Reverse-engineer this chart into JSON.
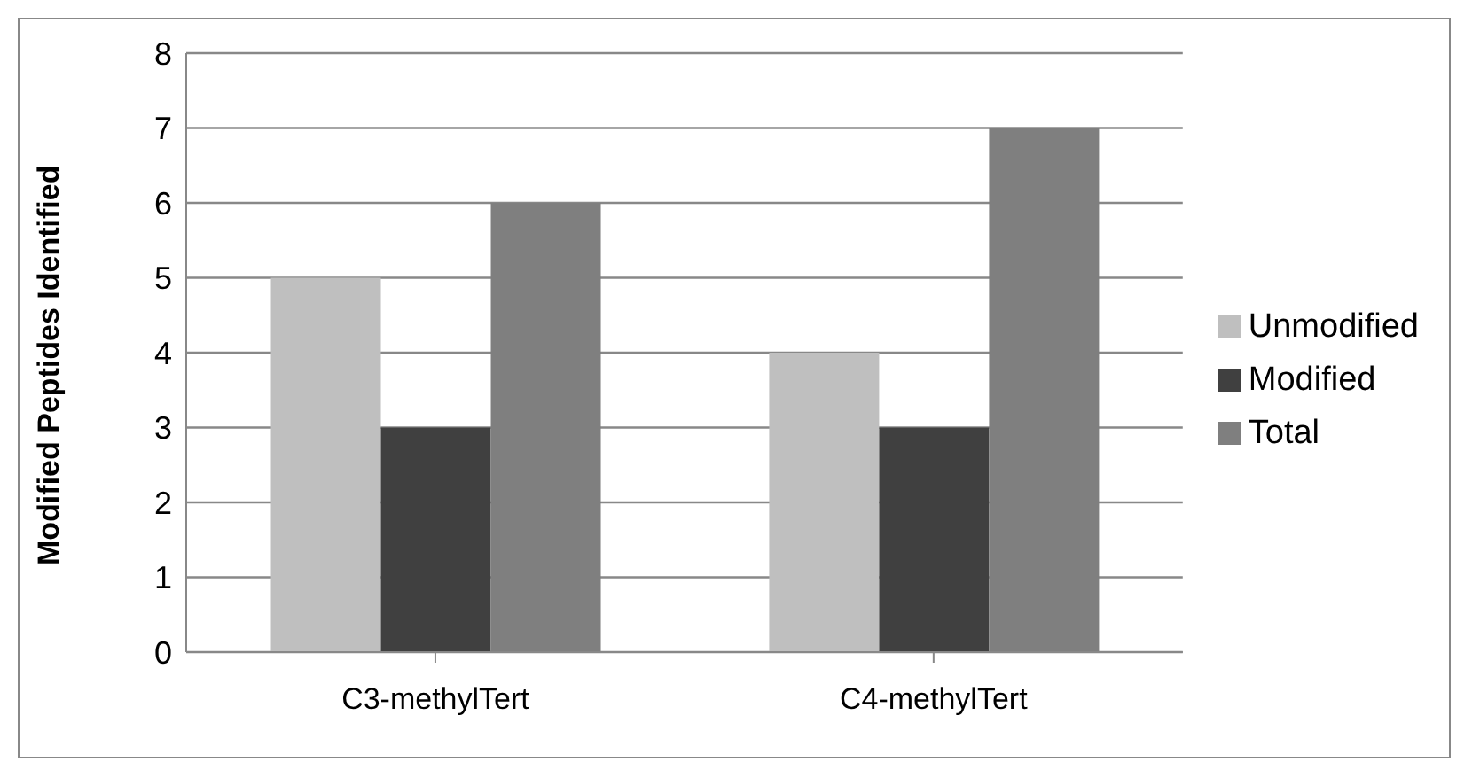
{
  "chart_data": {
    "type": "bar",
    "ylabel": "Modified Peptides Identified",
    "categories": [
      "C3-methylTert",
      "C4-methylTert"
    ],
    "series": [
      {
        "name": "Unmodified",
        "color": "#bfbfbf",
        "values": [
          5,
          4
        ]
      },
      {
        "name": "Modified",
        "color": "#404040",
        "values": [
          3,
          3
        ]
      },
      {
        "name": "Total",
        "color": "#7f7f7f",
        "values": [
          6,
          7
        ]
      }
    ],
    "ylim": [
      0,
      8
    ],
    "yticks": [
      0,
      1,
      2,
      3,
      4,
      5,
      6,
      7,
      8
    ],
    "grid": "y",
    "legend": "right"
  }
}
